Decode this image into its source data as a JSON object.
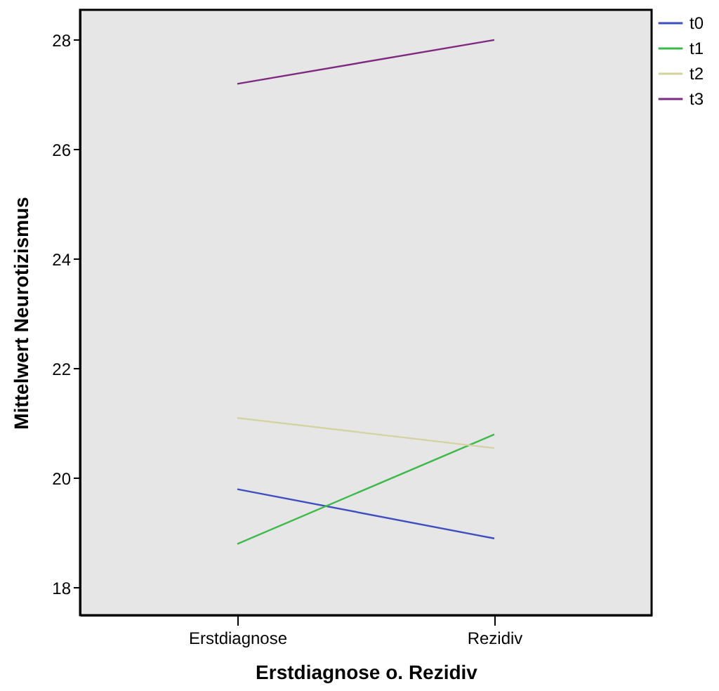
{
  "chart_data": {
    "type": "line",
    "xlabel": "Erstdiagnose o. Rezidiv",
    "ylabel": "Mittelwert Neurotizismus",
    "categories": [
      "Erstdiagnose",
      "Rezidiv"
    ],
    "series": [
      {
        "name": "t0",
        "color": "#3e4fbf",
        "values": [
          19.8,
          18.9
        ]
      },
      {
        "name": "t1",
        "color": "#3cba4a",
        "values": [
          18.8,
          20.8
        ]
      },
      {
        "name": "t2",
        "color": "#d4d3a0",
        "values": [
          21.1,
          20.55
        ]
      },
      {
        "name": "t3",
        "color": "#7d2a80",
        "values": [
          27.2,
          28.0
        ]
      }
    ],
    "ylim": [
      17.5,
      28.55
    ],
    "yticks": [
      18,
      20,
      22,
      24,
      26,
      28
    ],
    "grid": false,
    "legend": "top right",
    "marker": "none",
    "line_style": "solid"
  }
}
